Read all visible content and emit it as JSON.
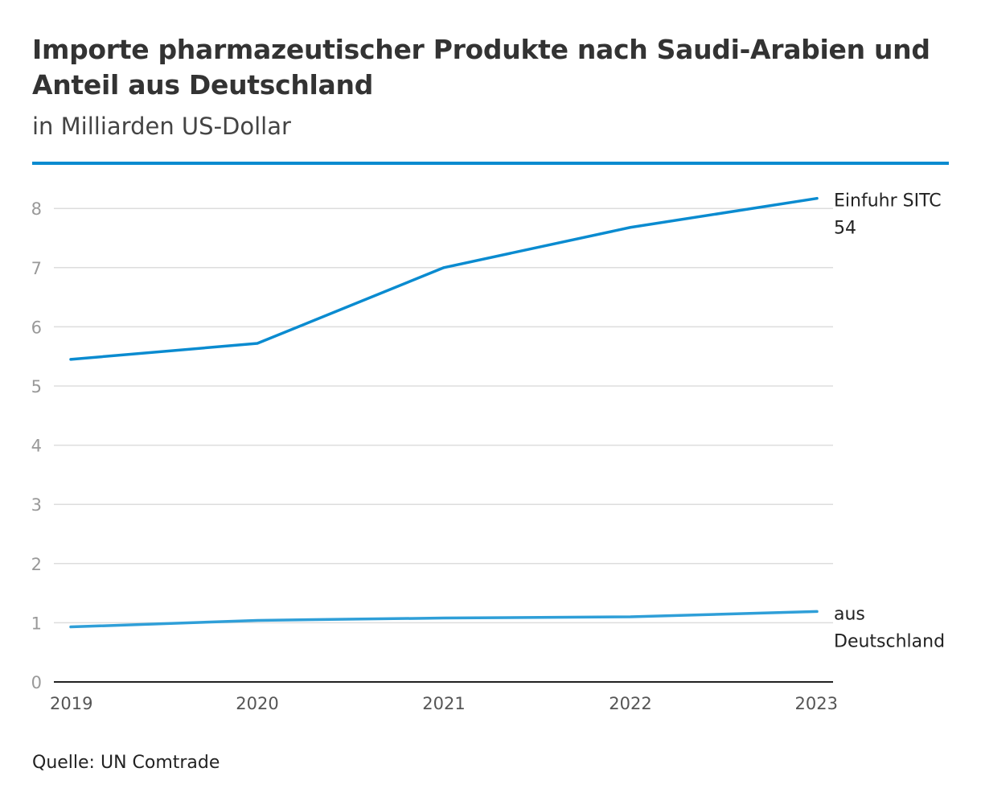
{
  "header": {
    "title": "Importe pharmazeutischer Produkte nach Saudi-Arabien und Anteil aus Deutschland",
    "subtitle": "in Milliarden US-Dollar"
  },
  "footer": {
    "source": "Quelle: UN Comtrade"
  },
  "colors": {
    "accent": "#0a8bd0",
    "series_total": "#0a8bd0",
    "series_germany": "#2f9fd8",
    "grid": "#dddddd",
    "axis": "#222222",
    "tick_label": "#999999"
  },
  "chart_data": {
    "type": "line",
    "title": "Importe pharmazeutischer Produkte nach Saudi-Arabien und Anteil aus Deutschland",
    "subtitle": "in Milliarden US-Dollar",
    "x": [
      "2019",
      "2020",
      "2021",
      "2022",
      "2023"
    ],
    "ylim": [
      0,
      8.5
    ],
    "yticks": [
      0,
      1,
      2,
      3,
      4,
      5,
      6,
      7,
      8
    ],
    "grid": true,
    "legend": "direct labels at line ends (right)",
    "series": [
      {
        "name": "Einfuhr SITC 54",
        "label_lines": [
          "Einfuhr SITC",
          "54"
        ],
        "values": [
          5.45,
          5.72,
          7.0,
          7.68,
          8.17
        ],
        "color": "#0a8bd0"
      },
      {
        "name": "aus Deutschland",
        "label_lines": [
          "aus",
          "Deutschland"
        ],
        "values": [
          0.93,
          1.04,
          1.08,
          1.1,
          1.19
        ],
        "color": "#2f9fd8"
      }
    ]
  }
}
